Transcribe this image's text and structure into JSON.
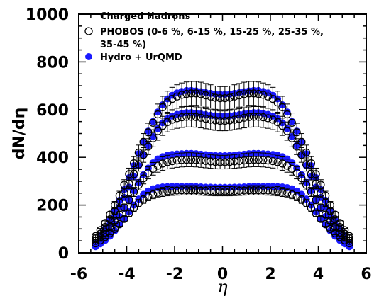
{
  "chart_data": {
    "type": "scatter",
    "xlabel": "η",
    "ylabel": "dN/dη",
    "xlim": [
      -6,
      6
    ],
    "ylim": [
      0,
      1000
    ],
    "x_ticks": [
      "-6",
      "-4",
      "-2",
      "0",
      "2",
      "4",
      "6"
    ],
    "y_ticks": [
      "0",
      "200",
      "400",
      "600",
      "800",
      "1000"
    ],
    "legend": {
      "position": "top",
      "title": "Charged Hadrons",
      "entries": [
        {
          "label": "PHOBOS (0-6 %, 6-15 %, 15-25 %, 25-35 %,",
          "label_cont": "35-45 %)",
          "marker": "open-circle",
          "color": "#000000"
        },
        {
          "label": "Hydro + UrQMD",
          "marker": "filled-circle",
          "color": "#1a1aff"
        }
      ]
    },
    "x": [
      -5.3,
      -5.1,
      -4.9,
      -4.7,
      -4.5,
      -4.3,
      -4.1,
      -3.9,
      -3.7,
      -3.5,
      -3.3,
      -3.1,
      -2.9,
      -2.7,
      -2.5,
      -2.3,
      -2.1,
      -1.9,
      -1.7,
      -1.5,
      -1.3,
      -1.1,
      -0.9,
      -0.7,
      -0.5,
      -0.3,
      -0.1,
      0.1,
      0.3,
      0.5,
      0.7,
      0.9,
      1.1,
      1.3,
      1.5,
      1.7,
      1.9,
      2.1,
      2.3,
      2.5,
      2.7,
      2.9,
      3.1,
      3.3,
      3.5,
      3.7,
      3.9,
      4.1,
      4.3,
      4.5,
      4.7,
      4.9,
      5.1,
      5.3
    ],
    "series": [
      {
        "name": "PHOBOS 0-6 %",
        "marker": "open",
        "values": [
          70,
          95,
          125,
          160,
          200,
          240,
          285,
          330,
          375,
          420,
          465,
          505,
          545,
          580,
          610,
          630,
          645,
          655,
          662,
          666,
          668,
          668,
          665,
          660,
          655,
          650,
          648,
          648,
          650,
          655,
          660,
          665,
          668,
          668,
          666,
          662,
          655,
          645,
          630,
          610,
          580,
          545,
          505,
          465,
          420,
          375,
          330,
          285,
          240,
          200,
          160,
          125,
          95,
          70
        ]
      },
      {
        "name": "Hydro + UrQMD 0-6 %",
        "marker": "filled",
        "values": [
          45,
          70,
          100,
          135,
          175,
          220,
          265,
          315,
          365,
          415,
          465,
          510,
          550,
          590,
          620,
          645,
          660,
          670,
          676,
          680,
          680,
          678,
          675,
          671,
          668,
          665,
          664,
          664,
          665,
          668,
          671,
          675,
          678,
          680,
          680,
          676,
          670,
          660,
          645,
          620,
          590,
          550,
          510,
          465,
          415,
          365,
          315,
          265,
          220,
          175,
          135,
          100,
          70,
          45
        ]
      },
      {
        "name": "PHOBOS 6-15 %",
        "marker": "open",
        "values": [
          60,
          80,
          108,
          140,
          175,
          210,
          250,
          290,
          330,
          370,
          410,
          445,
          480,
          510,
          532,
          548,
          558,
          564,
          568,
          570,
          570,
          569,
          566,
          562,
          558,
          555,
          553,
          553,
          555,
          558,
          562,
          566,
          569,
          570,
          570,
          568,
          564,
          558,
          548,
          532,
          510,
          480,
          445,
          410,
          370,
          330,
          290,
          250,
          210,
          175,
          140,
          108,
          80,
          60
        ]
      },
      {
        "name": "Hydro + UrQMD 6-15 %",
        "marker": "filled",
        "values": [
          38,
          60,
          87,
          118,
          153,
          192,
          232,
          275,
          320,
          365,
          410,
          450,
          487,
          520,
          545,
          562,
          573,
          580,
          584,
          587,
          587,
          585,
          582,
          579,
          576,
          574,
          573,
          573,
          574,
          576,
          579,
          582,
          585,
          587,
          587,
          584,
          580,
          573,
          562,
          545,
          520,
          487,
          450,
          410,
          365,
          320,
          275,
          232,
          192,
          153,
          118,
          87,
          60,
          38
        ]
      },
      {
        "name": "PHOBOS 15-25 %",
        "marker": "open",
        "values": [
          50,
          65,
          85,
          108,
          133,
          160,
          190,
          222,
          255,
          285,
          312,
          335,
          352,
          365,
          374,
          380,
          384,
          387,
          389,
          390,
          390,
          389,
          387,
          385,
          383,
          381,
          380,
          380,
          381,
          383,
          385,
          387,
          389,
          390,
          390,
          389,
          387,
          384,
          380,
          374,
          365,
          352,
          335,
          312,
          285,
          255,
          222,
          190,
          160,
          133,
          108,
          85,
          65,
          50
        ]
      },
      {
        "name": "Hydro + UrQMD 15-25 %",
        "marker": "filled",
        "values": [
          32,
          48,
          68,
          92,
          120,
          152,
          186,
          222,
          260,
          295,
          327,
          355,
          377,
          393,
          403,
          409,
          412,
          414,
          415,
          416,
          416,
          415,
          413,
          411,
          409,
          408,
          407,
          407,
          408,
          409,
          411,
          413,
          415,
          416,
          416,
          415,
          414,
          412,
          409,
          403,
          393,
          377,
          355,
          327,
          295,
          260,
          222,
          186,
          152,
          120,
          92,
          68,
          48,
          32
        ]
      },
      {
        "name": "PHOBOS 25-35 %",
        "marker": "open",
        "values": [
          40,
          52,
          66,
          82,
          100,
          120,
          142,
          165,
          188,
          208,
          224,
          236,
          245,
          251,
          255,
          258,
          260,
          261,
          262,
          262,
          262,
          262,
          261,
          260,
          259,
          258,
          258,
          258,
          258,
          259,
          260,
          261,
          262,
          262,
          262,
          262,
          261,
          260,
          258,
          255,
          251,
          245,
          236,
          224,
          208,
          188,
          165,
          142,
          120,
          100,
          82,
          66,
          52,
          40
        ]
      },
      {
        "name": "Hydro + UrQMD 25-35 %",
        "marker": "filled",
        "values": [
          26,
          38,
          52,
          70,
          92,
          117,
          144,
          172,
          200,
          225,
          245,
          259,
          268,
          273,
          276,
          277,
          278,
          278,
          278,
          278,
          278,
          277,
          276,
          275,
          275,
          274,
          274,
          274,
          274,
          275,
          275,
          276,
          277,
          278,
          278,
          278,
          278,
          278,
          277,
          276,
          273,
          268,
          259,
          245,
          225,
          200,
          172,
          144,
          117,
          92,
          70,
          52,
          38,
          26
        ]
      }
    ],
    "error_bar_fraction": 0.075
  }
}
